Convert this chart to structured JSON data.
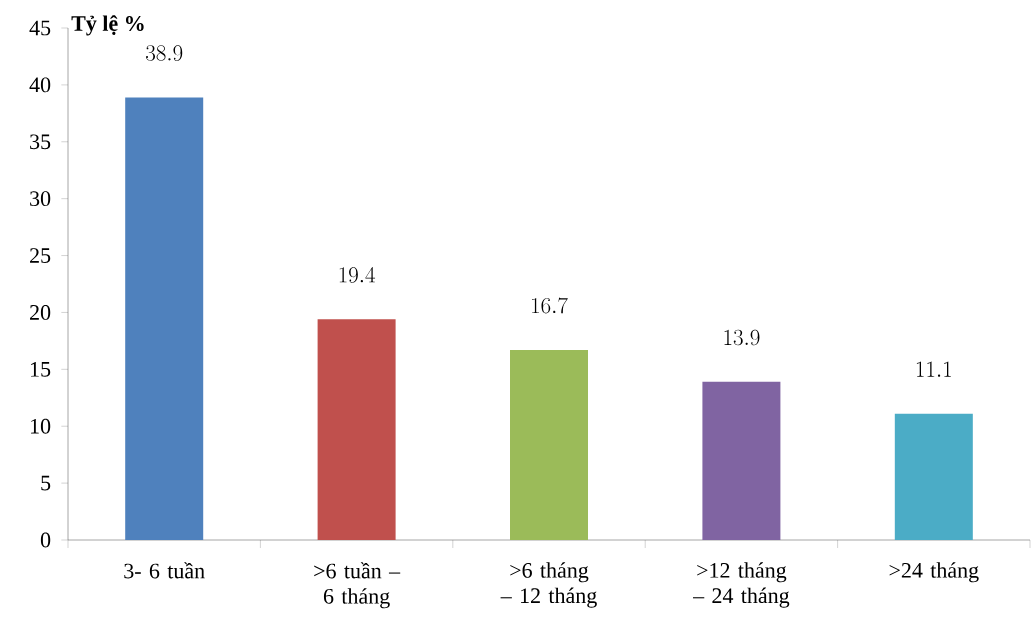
{
  "chart_data": {
    "type": "bar",
    "ylabel": "Tỷ lệ %",
    "categories": [
      "3- 6 tuần",
      ">6 tuần – 6 tháng",
      ">6 tháng – 12 tháng",
      ">12 tháng – 24 tháng",
      ">24 tháng"
    ],
    "values": [
      38.9,
      19.4,
      16.7,
      13.9,
      11.1
    ],
    "colors": [
      "#4f81bd",
      "#c0504d",
      "#9bbb59",
      "#8064a2",
      "#4bacc6"
    ],
    "ylim": [
      0,
      45
    ],
    "yticks": [
      0,
      5,
      10,
      15,
      20,
      25,
      30,
      35,
      40,
      45
    ],
    "data_labels": true
  }
}
